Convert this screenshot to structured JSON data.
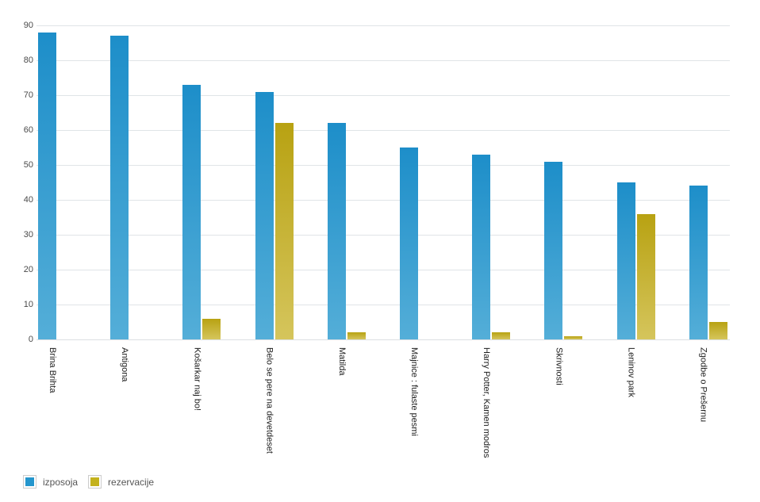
{
  "chart_data": {
    "type": "bar",
    "title": "",
    "xlabel": "",
    "ylabel": "",
    "categories": [
      "Brina Brihta",
      "Antigona",
      "Košarkar naj bo!",
      "Belo se pere na devetdeset",
      "Matilda",
      "Majnice : fulaste pesmi",
      "Harry Potter, Kamen modros",
      "Skrivnosti",
      "Leninov park",
      "Zgodbe o Prešernu"
    ],
    "series": [
      {
        "name": "izposoja",
        "values": [
          88,
          87,
          73,
          71,
          62,
          55,
          53,
          51,
          45,
          44
        ],
        "color_top": "#1d8ec9",
        "color_bottom": "#54aed8",
        "legend_color": "#2496cd"
      },
      {
        "name": "rezervacije",
        "values": [
          0,
          0,
          6,
          62,
          2,
          0,
          2,
          1,
          36,
          5
        ],
        "color_top": "#b8a212",
        "color_bottom": "#d5c55c",
        "legend_color": "#c4b21d"
      }
    ],
    "ylim": [
      0,
      90
    ],
    "yticks": [
      90,
      80,
      70,
      60,
      50,
      40,
      30,
      20,
      10,
      0
    ],
    "grid": true,
    "legend_position": "bottom-left",
    "colors": {
      "gridline": "#e0e4e7",
      "ytick_text": "#4a4a4a",
      "category_text": "#1c1c1c",
      "legend_text": "#555555",
      "background": "#ffffff"
    }
  }
}
